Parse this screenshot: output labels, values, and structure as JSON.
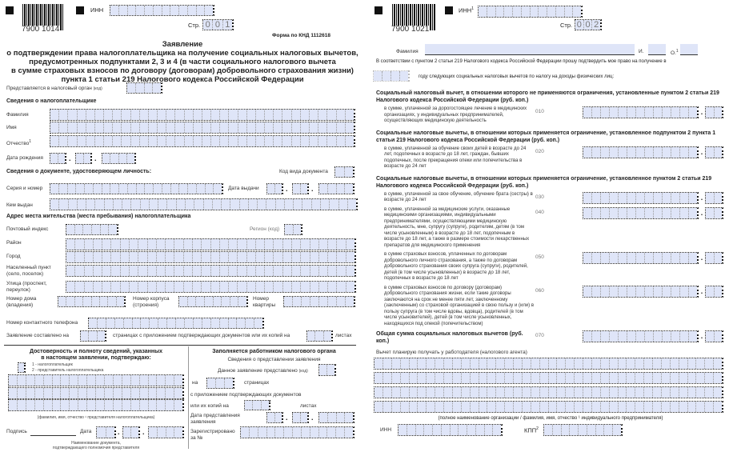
{
  "page1": {
    "barcode": "7900 1014",
    "inn_label": "ИНН",
    "page_label": "Стр.",
    "page_digits": [
      "0",
      "0",
      "1"
    ],
    "form_code": "Форма по КНД 1112618",
    "title": [
      "Заявление",
      "о подтверждении права налогоплательщика на получение социальных налоговых вычетов,",
      "предусмотренных подпунктами 2, 3 и 4 (в части социального налогового вычета",
      "в сумме страховых взносов по договору (договорам) добровольного страхования жизни)",
      "пункта 1 статьи 219 Налогового кодекса Российской Федерации"
    ],
    "tax_authority": "Представляется в налоговый орган",
    "code_hint": "(код)",
    "taxpayer_header": "Сведения о налогоплательщике",
    "surname": "Фамилия",
    "name": "Имя",
    "patronymic": "Отчество",
    "birth_date": "Дата рождения",
    "id_doc_header": "Сведения о документе, удостоверяющем личность:",
    "doc_type_code": "Код вида документа",
    "series_number": "Серия и номер",
    "issue_date": "Дата выдачи",
    "issued_by": "Кем выдан",
    "address_header": "Адрес места жительства (места пребывания) налогоплательщика",
    "postal_code": "Почтовый индекс",
    "region": "Регион (код)",
    "district": "Район",
    "city": "Город",
    "settlement": "Населенный пункт (село, поселок)",
    "street": "Улица (проспект, переулок)",
    "house": "Номер дома (владения)",
    "building": "Номер корпуса (строения)",
    "apartment": "Номер квартиры",
    "phone": "Номер контактного телефона",
    "pages_prefix": "Заявление составлено на",
    "pages_middle": "страницах с приложением подтверждающих документов или их копий на",
    "pages_suffix": "листах",
    "confirm_title": [
      "Достоверность и полноту сведений, указанных",
      "в настоящем заявлении, подтверждаю:"
    ],
    "confirm_opt1": "1 - налогоплательщик",
    "confirm_opt2": "2 - представитель налогоплательщика",
    "rep_caption": "(фамилия, имя, отчество ¹ представителя налогоплательщика)",
    "signature": "Подпись",
    "date": "Дата",
    "rep_doc": [
      "Наименование документа,",
      "подтверждающего полномочия представителя"
    ],
    "officer_title": "Заполняется работником налогового органа",
    "officer_sub": "Сведения о представлении заявления",
    "submitted": "Данное заявление представлено",
    "on": "на",
    "pages": "страницах",
    "with_docs": "с приложением подтверждающих документов",
    "copies_on": "или их копий на",
    "sheets": "листах",
    "submit_date": "Дата представления заявления",
    "registered": "Зарегистрировано за №"
  },
  "page2": {
    "barcode": "7900 1021",
    "inn_label": "ИНН",
    "page_label": "Стр.",
    "page_digits": [
      "0",
      "0",
      "2"
    ],
    "surname": "Фамилия",
    "initial_i": "И.",
    "initial_o": "О.",
    "intro": "В соответствии с пунктом 2 статьи 219 Налогового кодекса Российской Федерации прошу подтвердить мое право на получение в",
    "intro2": "году следующих социальных налоговых вычетов по налогу на доходы физических лиц:",
    "sec1": "Социальный налоговый вычет, в отношении которого не применяются ограничения, установленные пунктом 2 статьи 219 Налогового кодекса Российской Федерации (руб. коп.)",
    "l010": "в сумме, уплаченной за дорогостоящее лечение в медицинских организациях, у индивидуальных предпринимателей, осуществляющих медицинскую деятельность",
    "sec2": "Социальные налоговые вычеты, в отношении которых применяется ограничение, установленное подпунктом 2 пункта 1 статьи 219 Налогового кодекса Российской Федерации (руб. коп.)",
    "l020": "в сумме, уплаченной за обучение своих детей в возрасте до 24 лет, подопечных в возрасте до 18 лет, граждан, бывших подопечных, после прекращения опеки или попечительства в возрасте до 24 лет",
    "sec3": "Социальные налоговые вычеты, в отношении которых применяется ограничение, установленное пунктом 2 статьи 219 Налогового кодекса Российской Федерации (руб. коп.)",
    "l030": "в сумме, уплаченной за свое обучение, обучение брата (сестры) в возрасте до 24 лет",
    "l040": "в сумме, уплаченной за медицинские услуги, оказанные медицинскими организациями, индивидуальными предпринимателями, осуществляющими медицинскую деятельность, мне, супругу (супруге), родителям, детям (в том числе усыновленным) в возрасте до 18 лет, подопечным в возрасте до 18 лет, а также в размере стоимости лекарственных препаратов для медицинского применения",
    "l050": "в сумме страховых взносов, уплаченных по договорам добровольного личного страхования, а также по договорам добровольного страхования своих супруга (супруги), родителей, детей (в том числе усыновленных) в возрасте до 18 лет, подопечных в возрасте до 18 лет",
    "l060": "в сумме страховых взносов по договору (договорам) добровольного страхования жизни, если такие договоры заключаются на срок не менее пяти лет, заключенному (заключенным) со страховой организацией в свою пользу и (или) в пользу супруга (в том числе вдовы, вдовца), родителей (в том числе усыновителей), детей (в том числе усыновленных, находящихся под опекой (попечительством)",
    "total": "Общая сумма социальных налоговых вычетов (руб. коп.)",
    "codes": [
      "010",
      "020",
      "030",
      "040",
      "050",
      "060",
      "070"
    ],
    "employer": "Вычет планирую получать у работодателя (налогового агента)",
    "employer_caption": "(полное наименование организации / фамилия, имя, отчество ¹ индивидуального предпринимателя)",
    "inn": "ИНН",
    "kpp": "КПП"
  }
}
